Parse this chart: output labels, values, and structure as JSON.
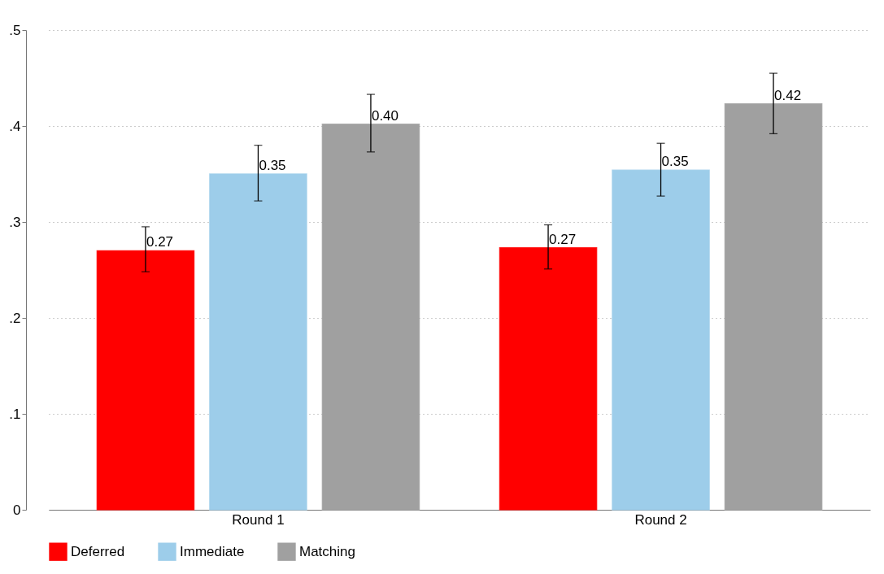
{
  "chart_data": {
    "type": "bar",
    "categories": [
      "Round 1",
      "Round 2"
    ],
    "series": [
      {
        "name": "Deferred",
        "color": "#ff0000",
        "values": [
          0.27,
          0.273
        ],
        "errors": [
          [
            0.248,
            0.295
          ],
          [
            0.251,
            0.297
          ]
        ],
        "value_labels": [
          "0.27",
          "0.27"
        ]
      },
      {
        "name": "Immediate",
        "color": "#9dcdea",
        "values": [
          0.35,
          0.354
        ],
        "errors": [
          [
            0.322,
            0.38
          ],
          [
            0.327,
            0.382
          ]
        ],
        "value_labels": [
          "0.35",
          "0.35"
        ]
      },
      {
        "name": "Matching",
        "color": "#a0a0a0",
        "values": [
          0.402,
          0.423
        ],
        "errors": [
          [
            0.373,
            0.433
          ],
          [
            0.392,
            0.455
          ]
        ],
        "value_labels": [
          "0.40",
          "0.42"
        ]
      }
    ],
    "ylim": [
      0,
      0.5
    ],
    "yticks": [
      0,
      {
        "value": 0.1,
        "label": ".1"
      },
      {
        "value": 0.2,
        "label": ".2"
      },
      {
        "value": 0.3,
        "label": ".3"
      },
      {
        "value": 0.4,
        "label": ".4"
      },
      {
        "value": 0.5,
        "label": ".5"
      }
    ],
    "grid": "y",
    "legend": "bottom"
  }
}
